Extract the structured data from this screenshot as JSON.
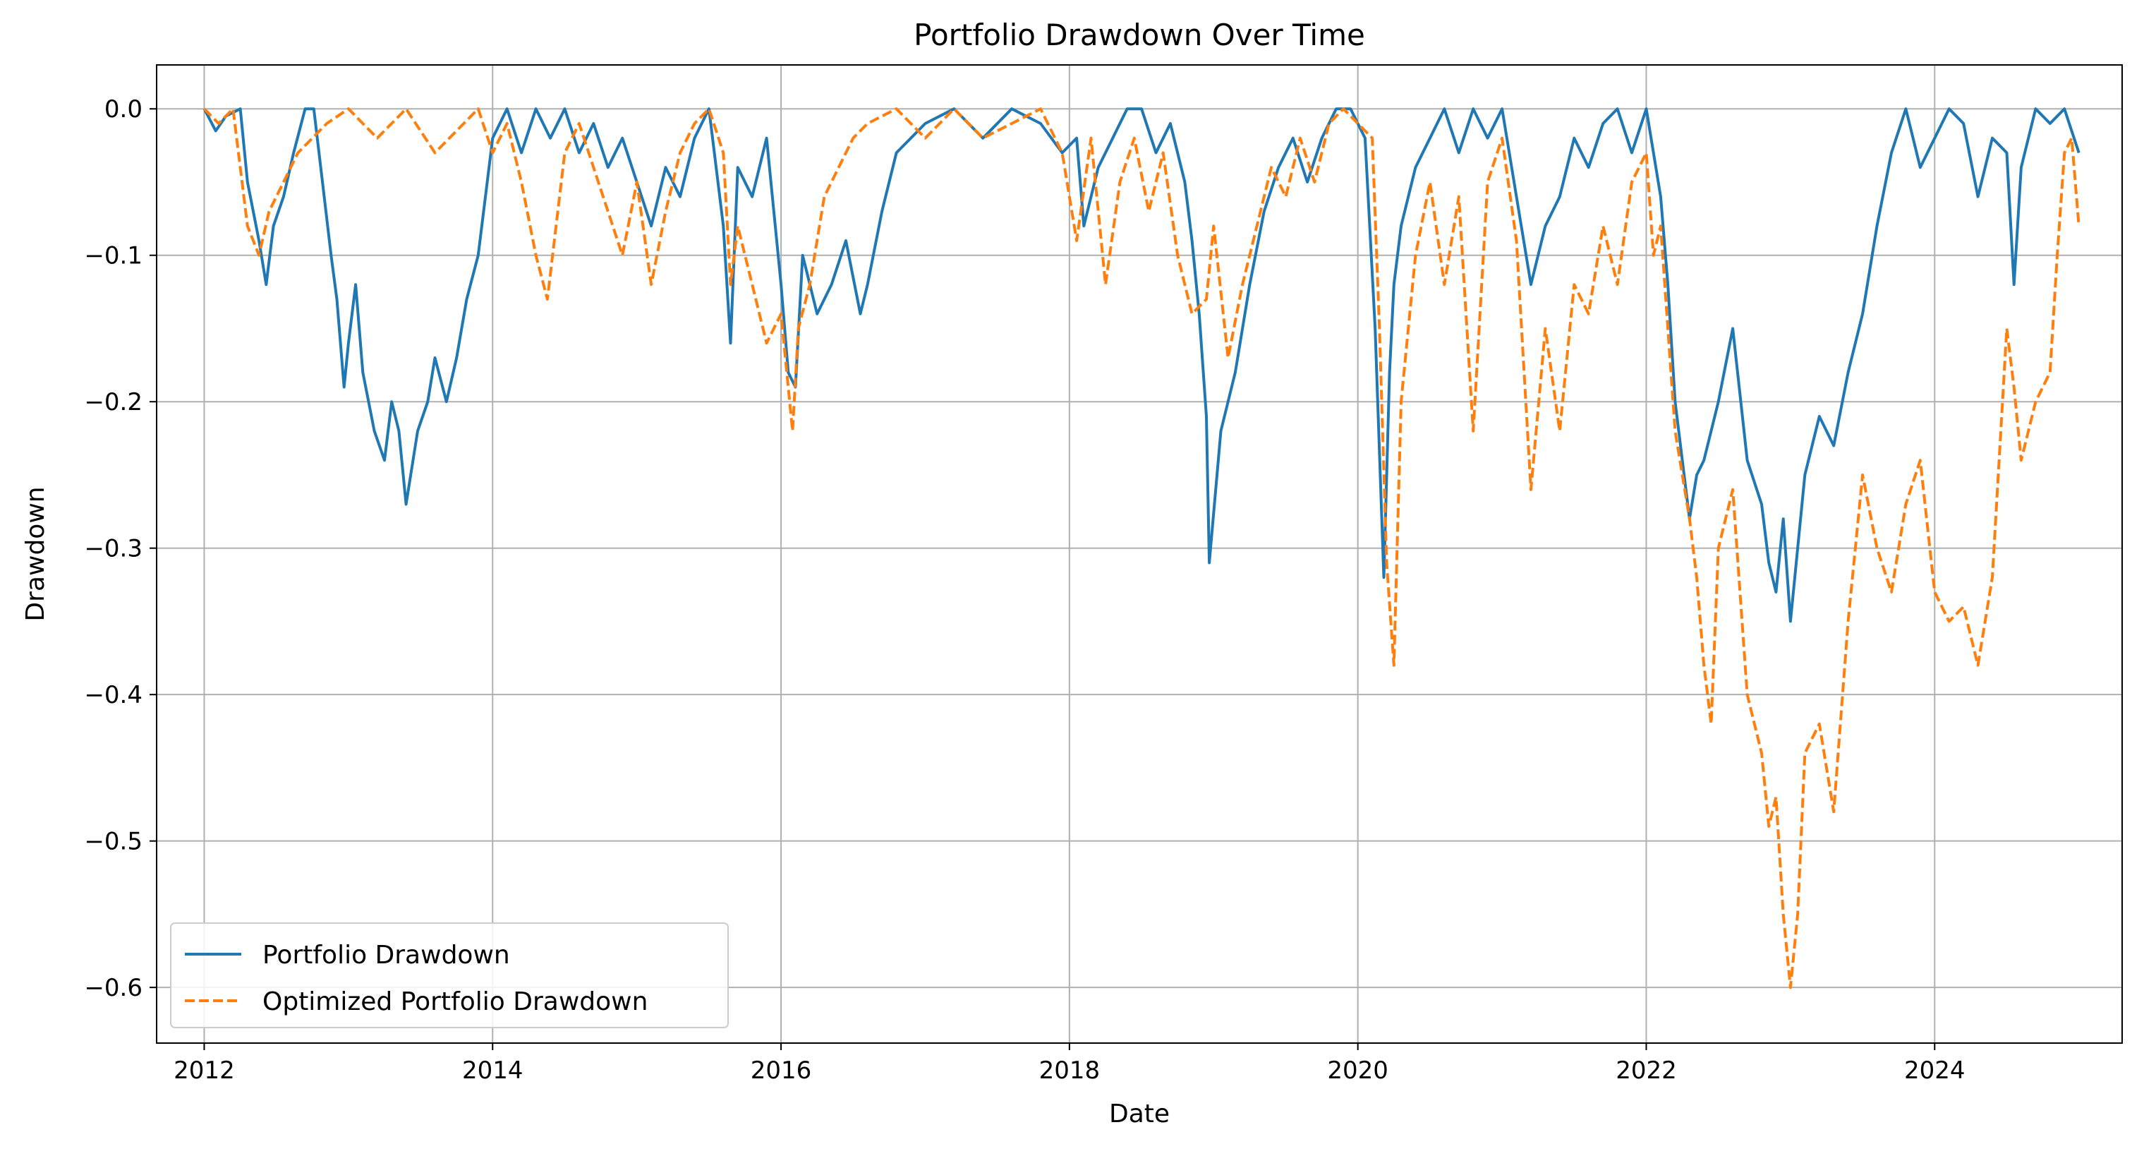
{
  "chart_data": {
    "type": "line",
    "title": "Portfolio Drawdown Over Time",
    "xlabel": "Date",
    "ylabel": "Drawdown",
    "xlim": [
      2011.67,
      2025.3
    ],
    "ylim": [
      -0.638,
      0.03
    ],
    "x_ticks": [
      2012,
      2014,
      2016,
      2018,
      2020,
      2022,
      2024
    ],
    "x_tick_labels": [
      "2012",
      "2014",
      "2016",
      "2018",
      "2020",
      "2022",
      "2024"
    ],
    "y_ticks": [
      0.0,
      -0.1,
      -0.2,
      -0.3,
      -0.4,
      -0.5,
      -0.6
    ],
    "y_tick_labels": [
      "0.0",
      "−0.1",
      "−0.2",
      "−0.3",
      "−0.4",
      "−0.5",
      "−0.6"
    ],
    "grid": true,
    "legend_position": "lower-left",
    "series": [
      {
        "name": "Portfolio Drawdown",
        "color": "#1f77b4",
        "style": "solid",
        "x": [
          2012.0,
          2012.08,
          2012.15,
          2012.25,
          2012.3,
          2012.38,
          2012.43,
          2012.48,
          2012.55,
          2012.62,
          2012.7,
          2012.76,
          2012.82,
          2012.88,
          2012.92,
          2012.97,
          2013.0,
          2013.05,
          2013.1,
          2013.18,
          2013.25,
          2013.3,
          2013.35,
          2013.4,
          2013.48,
          2013.55,
          2013.6,
          2013.68,
          2013.75,
          2013.82,
          2013.9,
          2014.0,
          2014.1,
          2014.2,
          2014.3,
          2014.4,
          2014.5,
          2014.6,
          2014.7,
          2014.8,
          2014.9,
          2015.0,
          2015.1,
          2015.2,
          2015.3,
          2015.4,
          2015.5,
          2015.6,
          2015.65,
          2015.7,
          2015.8,
          2015.9,
          2016.0,
          2016.05,
          2016.1,
          2016.15,
          2016.25,
          2016.35,
          2016.45,
          2016.55,
          2016.6,
          2016.7,
          2016.8,
          2017.0,
          2017.2,
          2017.4,
          2017.6,
          2017.8,
          2017.95,
          2018.05,
          2018.1,
          2018.2,
          2018.3,
          2018.4,
          2018.5,
          2018.6,
          2018.7,
          2018.8,
          2018.85,
          2018.9,
          2018.95,
          2018.97,
          2019.05,
          2019.15,
          2019.25,
          2019.35,
          2019.45,
          2019.55,
          2019.65,
          2019.75,
          2019.85,
          2019.95,
          2020.05,
          2020.12,
          2020.18,
          2020.22,
          2020.25,
          2020.3,
          2020.4,
          2020.5,
          2020.6,
          2020.7,
          2020.8,
          2020.9,
          2021.0,
          2021.1,
          2021.2,
          2021.3,
          2021.4,
          2021.5,
          2021.6,
          2021.7,
          2021.8,
          2021.9,
          2022.0,
          2022.1,
          2022.15,
          2022.2,
          2022.3,
          2022.35,
          2022.4,
          2022.5,
          2022.6,
          2022.7,
          2022.8,
          2022.85,
          2022.9,
          2022.95,
          2023.0,
          2023.05,
          2023.1,
          2023.2,
          2023.3,
          2023.4,
          2023.5,
          2023.6,
          2023.7,
          2023.8,
          2023.9,
          2024.0,
          2024.1,
          2024.2,
          2024.3,
          2024.4,
          2024.5,
          2024.55,
          2024.6,
          2024.7,
          2024.8,
          2024.9,
          2025.0
        ],
        "y": [
          0.0,
          -0.015,
          -0.005,
          0.0,
          -0.05,
          -0.09,
          -0.12,
          -0.08,
          -0.06,
          -0.03,
          0.0,
          0.0,
          -0.05,
          -0.1,
          -0.13,
          -0.19,
          -0.16,
          -0.12,
          -0.18,
          -0.22,
          -0.24,
          -0.2,
          -0.22,
          -0.27,
          -0.22,
          -0.2,
          -0.17,
          -0.2,
          -0.17,
          -0.13,
          -0.1,
          -0.02,
          0.0,
          -0.03,
          0.0,
          -0.02,
          0.0,
          -0.03,
          -0.01,
          -0.04,
          -0.02,
          -0.05,
          -0.08,
          -0.04,
          -0.06,
          -0.02,
          0.0,
          -0.08,
          -0.16,
          -0.04,
          -0.06,
          -0.02,
          -0.12,
          -0.18,
          -0.19,
          -0.1,
          -0.14,
          -0.12,
          -0.09,
          -0.14,
          -0.12,
          -0.07,
          -0.03,
          -0.01,
          0.0,
          -0.02,
          0.0,
          -0.01,
          -0.03,
          -0.02,
          -0.08,
          -0.04,
          -0.02,
          0.0,
          0.0,
          -0.03,
          -0.01,
          -0.05,
          -0.09,
          -0.14,
          -0.21,
          -0.31,
          -0.22,
          -0.18,
          -0.12,
          -0.07,
          -0.04,
          -0.02,
          -0.05,
          -0.02,
          0.0,
          0.0,
          -0.02,
          -0.15,
          -0.32,
          -0.18,
          -0.12,
          -0.08,
          -0.04,
          -0.02,
          0.0,
          -0.03,
          0.0,
          -0.02,
          0.0,
          -0.06,
          -0.12,
          -0.08,
          -0.06,
          -0.02,
          -0.04,
          -0.01,
          0.0,
          -0.03,
          0.0,
          -0.06,
          -0.12,
          -0.2,
          -0.28,
          -0.25,
          -0.24,
          -0.2,
          -0.15,
          -0.24,
          -0.27,
          -0.31,
          -0.33,
          -0.28,
          -0.35,
          -0.3,
          -0.25,
          -0.21,
          -0.23,
          -0.18,
          -0.14,
          -0.08,
          -0.03,
          0.0,
          -0.04,
          -0.02,
          0.0,
          -0.01,
          -0.06,
          -0.02,
          -0.03,
          -0.12,
          -0.04,
          0.0,
          -0.01,
          0.0,
          -0.03
        ]
      },
      {
        "name": "Optimized Portfolio Drawdown",
        "color": "#ff7f0e",
        "style": "dashed",
        "x": [
          2012.0,
          2012.1,
          2012.2,
          2012.3,
          2012.38,
          2012.45,
          2012.55,
          2012.65,
          2012.75,
          2012.85,
          2013.0,
          2013.2,
          2013.4,
          2013.6,
          2013.8,
          2013.9,
          2014.0,
          2014.1,
          2014.2,
          2014.3,
          2014.38,
          2014.5,
          2014.6,
          2014.7,
          2014.8,
          2014.9,
          2015.0,
          2015.1,
          2015.2,
          2015.3,
          2015.4,
          2015.5,
          2015.6,
          2015.65,
          2015.7,
          2015.8,
          2015.9,
          2016.0,
          2016.08,
          2016.12,
          2016.2,
          2016.3,
          2016.4,
          2016.5,
          2016.6,
          2016.8,
          2017.0,
          2017.2,
          2017.4,
          2017.6,
          2017.8,
          2017.95,
          2018.05,
          2018.15,
          2018.25,
          2018.35,
          2018.45,
          2018.55,
          2018.65,
          2018.75,
          2018.85,
          2018.95,
          2019.0,
          2019.1,
          2019.2,
          2019.3,
          2019.4,
          2019.5,
          2019.6,
          2019.7,
          2019.8,
          2019.9,
          2020.0,
          2020.1,
          2020.15,
          2020.2,
          2020.25,
          2020.3,
          2020.4,
          2020.5,
          2020.6,
          2020.7,
          2020.8,
          2020.9,
          2021.0,
          2021.1,
          2021.2,
          2021.3,
          2021.4,
          2021.5,
          2021.6,
          2021.7,
          2021.8,
          2021.9,
          2022.0,
          2022.05,
          2022.1,
          2022.15,
          2022.2,
          2022.3,
          2022.35,
          2022.4,
          2022.45,
          2022.5,
          2022.6,
          2022.7,
          2022.8,
          2022.85,
          2022.9,
          2022.95,
          2023.0,
          2023.05,
          2023.1,
          2023.2,
          2023.3,
          2023.4,
          2023.5,
          2023.6,
          2023.7,
          2023.8,
          2023.9,
          2024.0,
          2024.1,
          2024.2,
          2024.3,
          2024.4,
          2024.5,
          2024.55,
          2024.6,
          2024.7,
          2024.8,
          2024.85,
          2024.9,
          2024.95,
          2025.0
        ],
        "y": [
          0.0,
          -0.01,
          0.0,
          -0.08,
          -0.1,
          -0.07,
          -0.05,
          -0.03,
          -0.02,
          -0.01,
          0.0,
          -0.02,
          0.0,
          -0.03,
          -0.01,
          0.0,
          -0.03,
          -0.01,
          -0.05,
          -0.1,
          -0.13,
          -0.03,
          -0.01,
          -0.04,
          -0.07,
          -0.1,
          -0.05,
          -0.12,
          -0.07,
          -0.03,
          -0.01,
          0.0,
          -0.03,
          -0.12,
          -0.08,
          -0.12,
          -0.16,
          -0.14,
          -0.22,
          -0.15,
          -0.12,
          -0.06,
          -0.04,
          -0.02,
          -0.01,
          0.0,
          -0.02,
          0.0,
          -0.02,
          -0.01,
          0.0,
          -0.03,
          -0.09,
          -0.02,
          -0.12,
          -0.05,
          -0.02,
          -0.07,
          -0.03,
          -0.1,
          -0.14,
          -0.13,
          -0.08,
          -0.17,
          -0.12,
          -0.08,
          -0.04,
          -0.06,
          -0.02,
          -0.05,
          -0.01,
          0.0,
          -0.01,
          -0.02,
          -0.15,
          -0.31,
          -0.38,
          -0.2,
          -0.1,
          -0.05,
          -0.12,
          -0.06,
          -0.22,
          -0.05,
          -0.02,
          -0.09,
          -0.26,
          -0.15,
          -0.22,
          -0.12,
          -0.14,
          -0.08,
          -0.12,
          -0.05,
          -0.03,
          -0.1,
          -0.08,
          -0.15,
          -0.22,
          -0.28,
          -0.32,
          -0.38,
          -0.42,
          -0.3,
          -0.26,
          -0.4,
          -0.44,
          -0.49,
          -0.47,
          -0.55,
          -0.6,
          -0.55,
          -0.44,
          -0.42,
          -0.48,
          -0.35,
          -0.25,
          -0.3,
          -0.33,
          -0.27,
          -0.24,
          -0.33,
          -0.35,
          -0.34,
          -0.38,
          -0.32,
          -0.15,
          -0.19,
          -0.24,
          -0.2,
          -0.18,
          -0.1,
          -0.03,
          -0.02,
          -0.08
        ]
      }
    ]
  }
}
